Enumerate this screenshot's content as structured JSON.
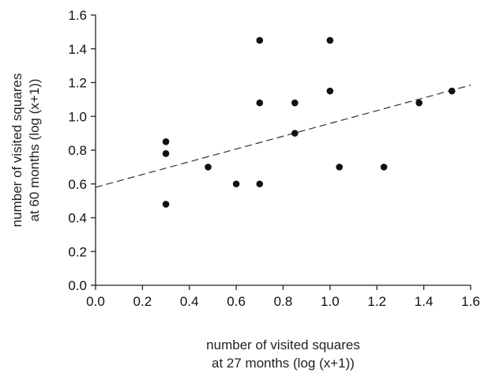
{
  "chart_data": {
    "type": "scatter",
    "title": "",
    "xlabel_lines": [
      "number of visited squares",
      "at 27 months (log (x+1))"
    ],
    "ylabel_lines": [
      "number of visited squares",
      "at 60 months (log (x+1))"
    ],
    "xlim": [
      0.0,
      1.6
    ],
    "ylim": [
      0.0,
      1.6
    ],
    "xticks": [
      "0.0",
      "0.2",
      "0.4",
      "0.6",
      "0.8",
      "1.0",
      "1.2",
      "1.4",
      "1.6"
    ],
    "yticks": [
      "0.0",
      "0.2",
      "0.4",
      "0.6",
      "0.8",
      "1.0",
      "1.2",
      "1.4",
      "1.6"
    ],
    "grid": false,
    "points": [
      {
        "x": 0.3,
        "y": 0.85
      },
      {
        "x": 0.3,
        "y": 0.78
      },
      {
        "x": 0.3,
        "y": 0.48
      },
      {
        "x": 0.48,
        "y": 0.7
      },
      {
        "x": 0.6,
        "y": 0.6
      },
      {
        "x": 0.7,
        "y": 1.45
      },
      {
        "x": 0.7,
        "y": 1.08
      },
      {
        "x": 0.7,
        "y": 0.6
      },
      {
        "x": 0.85,
        "y": 1.08
      },
      {
        "x": 0.85,
        "y": 0.9
      },
      {
        "x": 1.0,
        "y": 1.45
      },
      {
        "x": 1.0,
        "y": 1.15
      },
      {
        "x": 1.04,
        "y": 0.7
      },
      {
        "x": 1.23,
        "y": 0.7
      },
      {
        "x": 1.38,
        "y": 1.08
      },
      {
        "x": 1.52,
        "y": 1.15
      }
    ],
    "trendline": {
      "style": "dashed",
      "x": [
        0.0,
        1.6
      ],
      "y": [
        0.58,
        1.185
      ]
    },
    "colors": {
      "points": "#111111",
      "axis": "#222222",
      "trendline": "#333333"
    }
  }
}
